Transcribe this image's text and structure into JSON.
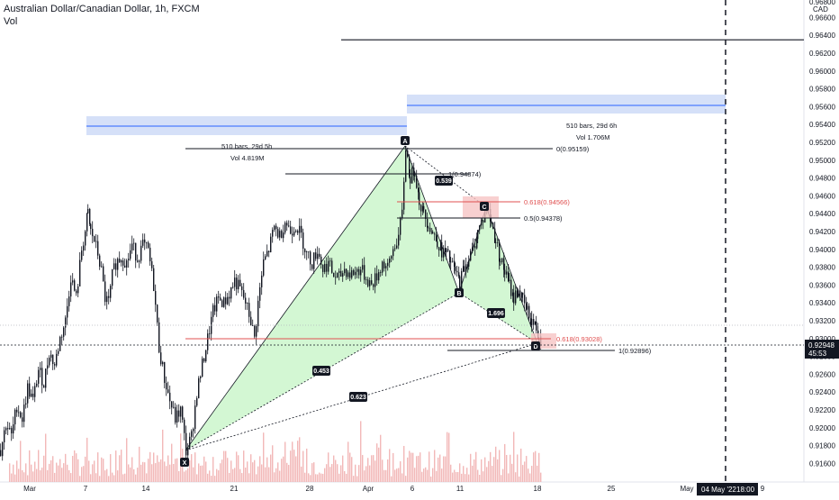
{
  "header": {
    "symbol_line": "Australian Dollar/Canadian Dollar, 1h, FXCM",
    "vol_label": "Vol"
  },
  "colors": {
    "candle": "#131722",
    "volume": "#f2b8b8",
    "pattern_fill": "#c8f5c8",
    "range_box": "#d0ddf7",
    "range_line": "#2962ff",
    "fib_red": "#e05050",
    "last_price_bg": "#131722",
    "grid": "#eef0f3"
  },
  "chart_data": {
    "type": "candlestick",
    "title": "Australian Dollar/Canadian Dollar, 1h, FXCM",
    "ylabel": "CAD",
    "ylim": [
      0.915,
      0.969
    ],
    "x_tick_labels": [
      "Mar",
      "7",
      "14",
      "21",
      "28",
      "Apr",
      "6",
      "11",
      "18",
      "25",
      "May",
      "9"
    ],
    "y_tick_labels": [
      "0.96600",
      "0.96400",
      "0.96200",
      "0.96000",
      "0.95800",
      "0.95600",
      "0.95400",
      "0.95200",
      "0.95000",
      "0.94800",
      "0.94600",
      "0.94400",
      "0.94200",
      "0.94000",
      "0.93800",
      "0.93600",
      "0.93400",
      "0.93200",
      "0.93000",
      "0.92800",
      "0.92600",
      "0.92400",
      "0.92200",
      "0.92000",
      "0.91800",
      "0.91600"
    ],
    "y_tick_top_partial": "0.96800",
    "last_price": {
      "value": "0.92948",
      "countdown": "45:53"
    },
    "crosshair_date": "04 May '22",
    "crosshair_time": "18:00",
    "horizontal_line_price": 0.9635,
    "harmonic_pattern": {
      "points": [
        {
          "label": "X",
          "date": "Mar 16",
          "price": 0.9174
        },
        {
          "label": "A",
          "date": "Apr 5",
          "price": 0.95159
        },
        {
          "label": "B",
          "date": "Apr 11",
          "price": 0.9363
        },
        {
          "label": "C",
          "date": "Apr 14",
          "price": 0.9448
        },
        {
          "label": "D",
          "date": "Apr 18",
          "price": 0.93
        }
      ],
      "ratios": [
        "0.539",
        "1.696",
        "0.453",
        "0.623"
      ]
    },
    "fib_levels": [
      {
        "label": "0(0.95159)",
        "price": 0.95159
      },
      {
        "label": "1(0.94874)",
        "price": 0.94874
      },
      {
        "label": "0.618(0.94566)",
        "price": 0.94566
      },
      {
        "label": "0.5(0.94378)",
        "price": 0.94378
      },
      {
        "label": "0.618(0.93028)",
        "price": 0.93028
      },
      {
        "label": "1(0.92896)",
        "price": 0.92896
      }
    ],
    "date_ranges": [
      {
        "bars": "510 bars, 29d 5h",
        "vol": "Vol 4.819M"
      },
      {
        "bars": "510 bars, 29d 6h",
        "vol": "Vol 1.706M"
      }
    ],
    "price_path": [
      [
        0,
        0.9175
      ],
      [
        6,
        0.9205
      ],
      [
        12,
        0.919
      ],
      [
        18,
        0.9225
      ],
      [
        24,
        0.921
      ],
      [
        30,
        0.9245
      ],
      [
        36,
        0.923
      ],
      [
        42,
        0.9265
      ],
      [
        48,
        0.925
      ],
      [
        54,
        0.9285
      ],
      [
        60,
        0.927
      ],
      [
        66,
        0.93
      ],
      [
        72,
        0.932
      ],
      [
        78,
        0.937
      ],
      [
        84,
        0.9345
      ],
      [
        90,
        0.94
      ],
      [
        94,
        0.942
      ],
      [
        97,
        0.944
      ],
      [
        100,
        0.942
      ],
      [
        104,
        0.941
      ],
      [
        108,
        0.9395
      ],
      [
        112,
        0.9375
      ],
      [
        116,
        0.9345
      ],
      [
        120,
        0.934
      ],
      [
        124,
        0.937
      ],
      [
        128,
        0.9385
      ],
      [
        134,
        0.9392
      ],
      [
        140,
        0.9385
      ],
      [
        146,
        0.9405
      ],
      [
        152,
        0.939
      ],
      [
        158,
        0.9405
      ],
      [
        164,
        0.9398
      ],
      [
        170,
        0.936
      ],
      [
        176,
        0.929
      ],
      [
        182,
        0.9255
      ],
      [
        188,
        0.923
      ],
      [
        194,
        0.921
      ],
      [
        200,
        0.922
      ],
      [
        206,
        0.9174
      ],
      [
        212,
        0.919
      ],
      [
        218,
        0.924
      ],
      [
        224,
        0.927
      ],
      [
        230,
        0.93
      ],
      [
        236,
        0.933
      ],
      [
        242,
        0.9345
      ],
      [
        248,
        0.934
      ],
      [
        254,
        0.935
      ],
      [
        260,
        0.9365
      ],
      [
        266,
        0.9355
      ],
      [
        272,
        0.934
      ],
      [
        278,
        0.932
      ],
      [
        282,
        0.93
      ],
      [
        286,
        0.934
      ],
      [
        292,
        0.9385
      ],
      [
        298,
        0.94
      ],
      [
        304,
        0.9425
      ],
      [
        310,
        0.9415
      ],
      [
        316,
        0.9432
      ],
      [
        322,
        0.942
      ],
      [
        328,
        0.9428
      ],
      [
        334,
        0.9415
      ],
      [
        340,
        0.9395
      ],
      [
        346,
        0.9385
      ],
      [
        352,
        0.94
      ],
      [
        358,
        0.9378
      ],
      [
        364,
        0.9385
      ],
      [
        370,
        0.937
      ],
      [
        376,
        0.9368
      ],
      [
        382,
        0.9378
      ],
      [
        388,
        0.9372
      ],
      [
        394,
        0.9375
      ],
      [
        400,
        0.9378
      ],
      [
        406,
        0.9368
      ],
      [
        412,
        0.936
      ],
      [
        418,
        0.937
      ],
      [
        424,
        0.9385
      ],
      [
        430,
        0.9378
      ],
      [
        436,
        0.94
      ],
      [
        442,
        0.9415
      ],
      [
        446,
        0.944
      ],
      [
        450,
        0.95159
      ],
      [
        455,
        0.948
      ],
      [
        460,
        0.949
      ],
      [
        465,
        0.9455
      ],
      [
        470,
        0.944
      ],
      [
        475,
        0.943
      ],
      [
        480,
        0.9418
      ],
      [
        485,
        0.941
      ],
      [
        490,
        0.9398
      ],
      [
        495,
        0.9395
      ],
      [
        500,
        0.9385
      ],
      [
        505,
        0.9375
      ],
      [
        510,
        0.9363
      ],
      [
        515,
        0.938
      ],
      [
        520,
        0.939
      ],
      [
        525,
        0.94
      ],
      [
        530,
        0.942
      ],
      [
        536,
        0.9435
      ],
      [
        540,
        0.9448
      ],
      [
        545,
        0.943
      ],
      [
        550,
        0.941
      ],
      [
        555,
        0.939
      ],
      [
        560,
        0.9375
      ],
      [
        565,
        0.936
      ],
      [
        570,
        0.9345
      ],
      [
        575,
        0.9355
      ],
      [
        580,
        0.9342
      ],
      [
        585,
        0.933
      ],
      [
        590,
        0.932
      ],
      [
        595,
        0.9312
      ],
      [
        598,
        0.93
      ],
      [
        601,
        0.931
      ]
    ]
  }
}
